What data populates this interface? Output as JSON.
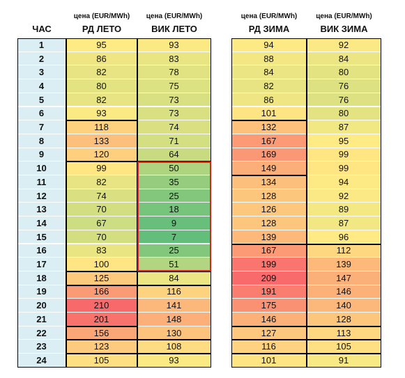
{
  "hour_header": "ЧАС",
  "columns": [
    {
      "unit": "цена (EUR/MWh)",
      "name": "РД ЛЕТО"
    },
    {
      "unit": "цена (EUR/MWh)",
      "name": "ВИК ЛЕТО"
    },
    {
      "unit": "цена (EUR/MWh)",
      "name": "РД ЗИМА"
    },
    {
      "unit": "цена (EUR/MWh)",
      "name": "ВИК ЗИМА"
    }
  ],
  "rows": [
    [
      1,
      95,
      93,
      94,
      92
    ],
    [
      2,
      86,
      83,
      88,
      84
    ],
    [
      3,
      82,
      78,
      84,
      80
    ],
    [
      4,
      80,
      75,
      82,
      76
    ],
    [
      5,
      82,
      73,
      86,
      76
    ],
    [
      6,
      93,
      73,
      101,
      80
    ],
    [
      7,
      118,
      74,
      132,
      87
    ],
    [
      8,
      133,
      71,
      167,
      95
    ],
    [
      9,
      120,
      64,
      169,
      99
    ],
    [
      10,
      99,
      50,
      149,
      99
    ],
    [
      11,
      82,
      35,
      134,
      94
    ],
    [
      12,
      74,
      25,
      128,
      92
    ],
    [
      13,
      70,
      18,
      126,
      89
    ],
    [
      14,
      67,
      9,
      128,
      87
    ],
    [
      15,
      70,
      7,
      139,
      96
    ],
    [
      16,
      83,
      25,
      167,
      112
    ],
    [
      17,
      100,
      51,
      199,
      139
    ],
    [
      18,
      125,
      84,
      209,
      147
    ],
    [
      19,
      166,
      116,
      191,
      146
    ],
    [
      20,
      210,
      141,
      175,
      140
    ],
    [
      21,
      201,
      148,
      146,
      128
    ],
    [
      22,
      156,
      130,
      127,
      113
    ],
    [
      23,
      123,
      108,
      116,
      105
    ],
    [
      24,
      105,
      93,
      101,
      91
    ]
  ]
}
